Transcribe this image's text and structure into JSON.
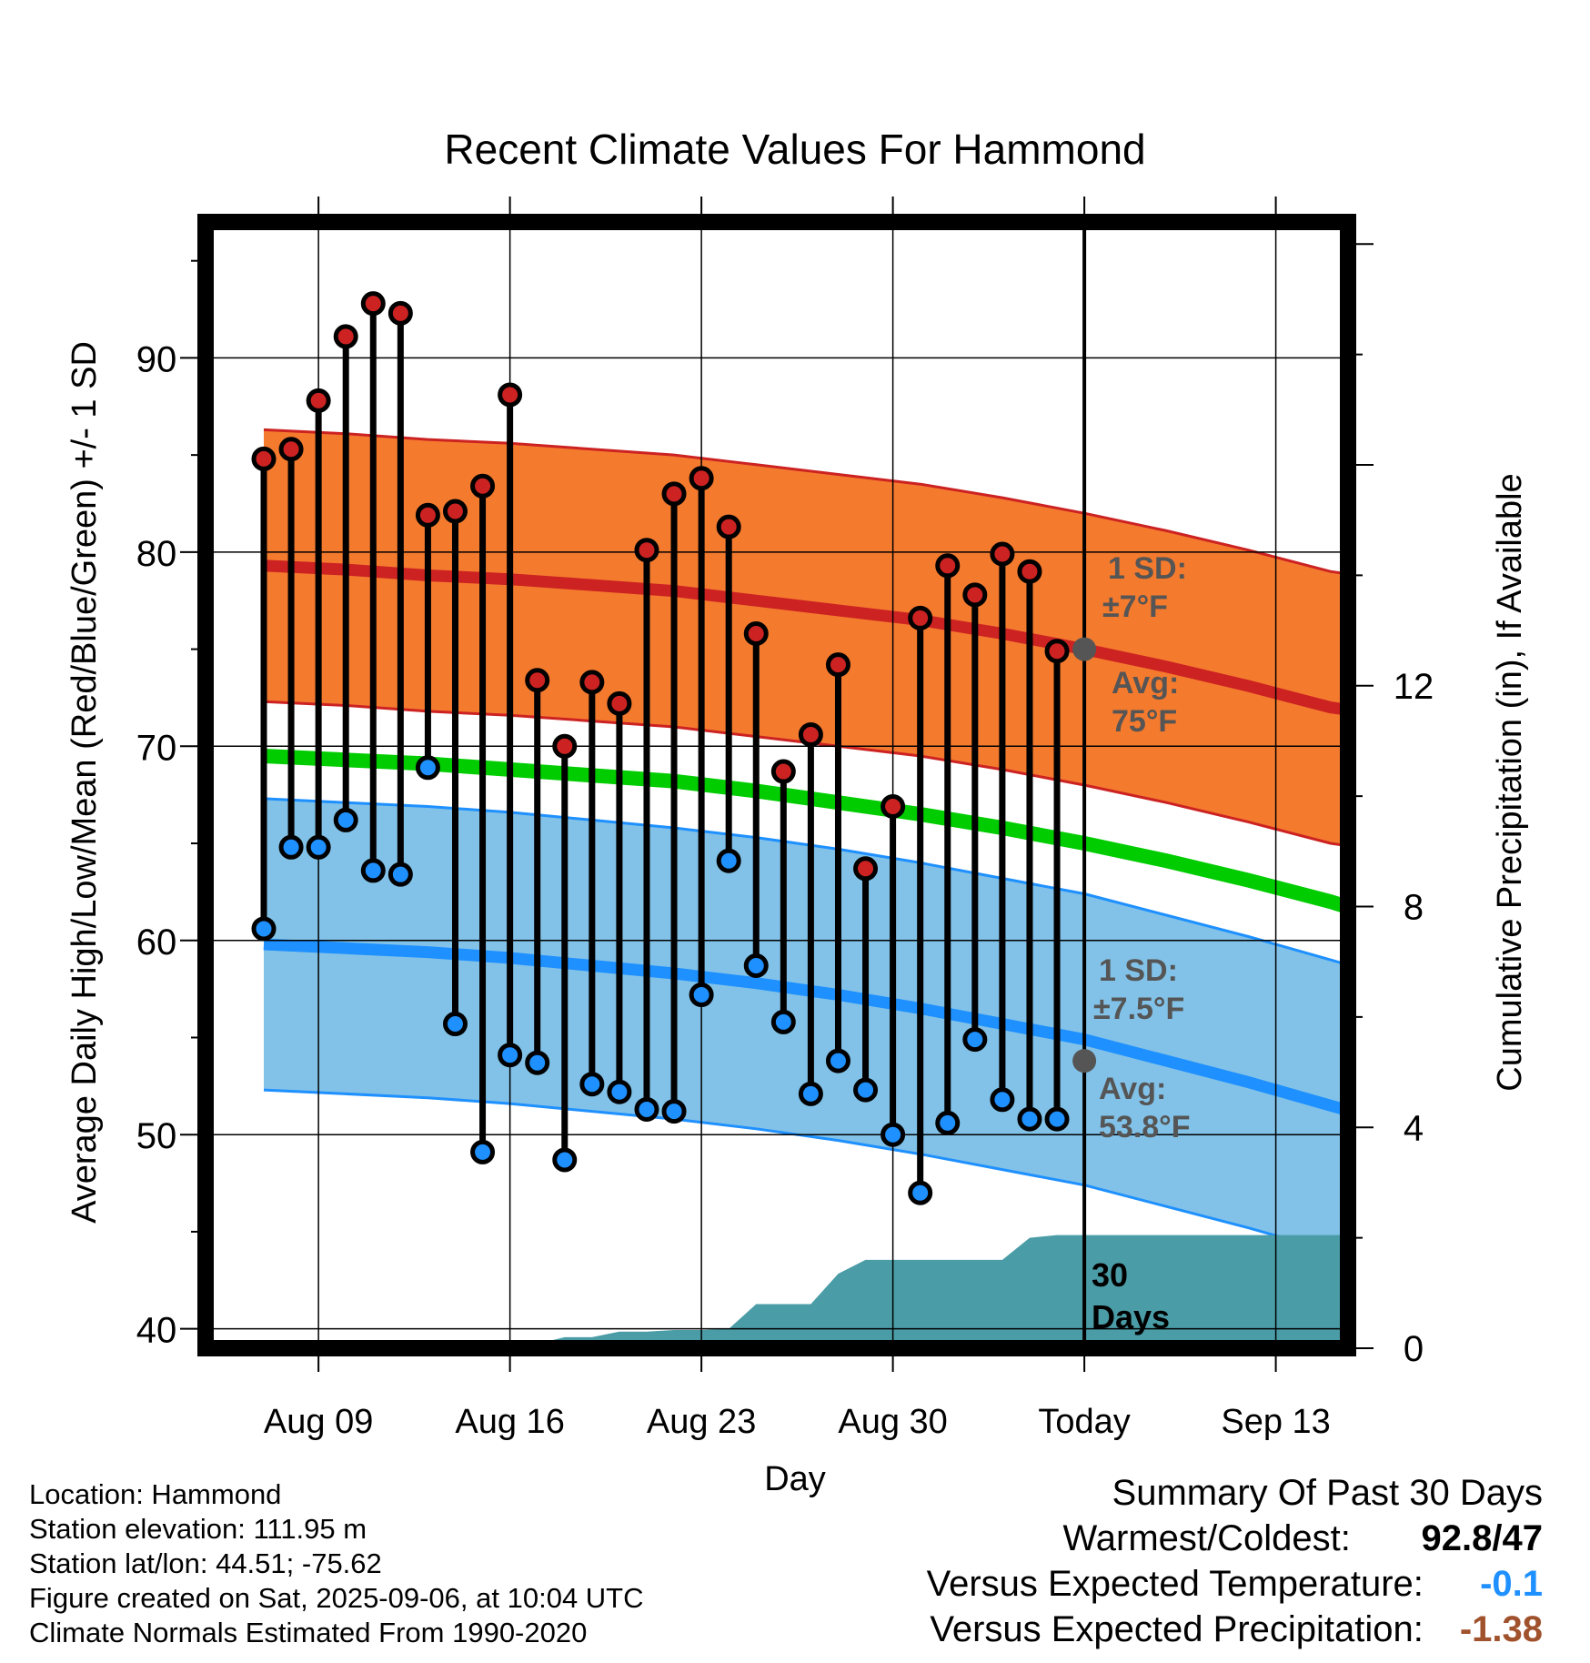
{
  "chart_data": {
    "type": "line",
    "title": "Recent Climate Values For Hammond",
    "xlabel": "Day",
    "ylabel": "Average Daily High/Low/Mean (Red/Blue/Green) +/- 1 SD",
    "y2label": "Cumulative Precipitation (in), If Available",
    "x_dates": [
      "Aug 07",
      "Aug 08",
      "Aug 09",
      "Aug 10",
      "Aug 11",
      "Aug 12",
      "Aug 13",
      "Aug 14",
      "Aug 15",
      "Aug 16",
      "Aug 17",
      "Aug 18",
      "Aug 19",
      "Aug 20",
      "Aug 21",
      "Aug 22",
      "Aug 23",
      "Aug 24",
      "Aug 25",
      "Aug 26",
      "Aug 27",
      "Aug 28",
      "Aug 29",
      "Aug 30",
      "Aug 31",
      "Sep 01",
      "Sep 02",
      "Sep 03",
      "Sep 04",
      "Sep 05"
    ],
    "x_tick_labels": [
      "Aug 09",
      "Aug 16",
      "Aug 23",
      "Aug 30",
      "Today",
      "Sep 13"
    ],
    "ylim": [
      39,
      97
    ],
    "yticks": [
      40,
      50,
      60,
      70,
      80,
      90
    ],
    "y2lim": [
      0,
      20.4
    ],
    "y2ticks": [
      0,
      4,
      8,
      12
    ],
    "grid": true,
    "series": [
      {
        "name": "High",
        "color": "#cc2222",
        "values": [
          84.8,
          85.3,
          87.8,
          91.1,
          92.8,
          92.3,
          81.9,
          82.1,
          83.4,
          88.1,
          73.4,
          70.0,
          73.3,
          72.2,
          80.1,
          83.0,
          83.8,
          81.3,
          75.8,
          68.7,
          70.6,
          74.2,
          63.7,
          66.9,
          76.6,
          79.3,
          77.8,
          79.9,
          79.0,
          74.9
        ]
      },
      {
        "name": "Low",
        "color": "#1e90ff",
        "values": [
          60.6,
          64.8,
          64.8,
          66.2,
          63.6,
          63.4,
          68.9,
          55.7,
          49.1,
          54.1,
          53.7,
          48.7,
          52.6,
          52.2,
          51.3,
          51.2,
          57.2,
          64.1,
          58.7,
          55.8,
          52.1,
          53.8,
          52.3,
          50.0,
          47.0,
          50.6,
          54.9,
          51.8,
          50.8,
          50.8
        ]
      },
      {
        "name": "Normal High",
        "values": [
          79.3,
          79.1,
          78.8,
          78.6,
          78.3,
          78.0,
          77.5,
          77.0,
          76.5,
          75.8,
          75.0,
          74.1,
          73.1,
          72.0,
          71.5
        ]
      },
      {
        "name": "Normal Low",
        "values": [
          59.8,
          59.6,
          59.4,
          59.1,
          58.7,
          58.3,
          57.8,
          57.2,
          56.5,
          55.7,
          54.9,
          53.8,
          52.7,
          51.5,
          50.5
        ]
      },
      {
        "name": "Normal Mean",
        "values": [
          69.5,
          69.3,
          69.1,
          68.8,
          68.5,
          68.2,
          67.7,
          67.1,
          66.5,
          65.8,
          65.0,
          64.1,
          63.1,
          62.0,
          60.9
        ]
      },
      {
        "name": "Cumulative Precipitation",
        "values": [
          0,
          0,
          0,
          0,
          0,
          0,
          0,
          0.08,
          0.08,
          0.08,
          0.08,
          0.2,
          0.2,
          0.3,
          0.3,
          0.33,
          0.33,
          0.35,
          0.8,
          0.8,
          0.8,
          1.35,
          1.6,
          1.6,
          1.6,
          1.6,
          1.6,
          1.6,
          2.0,
          2.05
        ]
      }
    ],
    "normal_x_days": [
      0,
      3,
      6,
      9,
      12,
      15,
      18,
      21,
      24,
      27,
      30,
      33,
      36,
      39,
      41.5
    ],
    "sd_high": 7,
    "sd_low": 7.5,
    "annotations": {
      "high_sd_label": "1 SD:",
      "high_sd_value": "±7°F",
      "high_avg_label": "Avg:",
      "high_avg_value": "75°F",
      "low_sd_label": "1 SD:",
      "low_sd_value": "±7.5°F",
      "low_avg_label": "Avg:",
      "low_avg_value": "53.8°F",
      "window_line1": "30",
      "window_line2": "Days"
    },
    "colors": {
      "high_band": "#f47a2e",
      "high_line": "#cc2222",
      "low_band": "#82c2e8",
      "low_line": "#1e90ff",
      "mean_line": "#00cc00",
      "precip": "#4a9ca6",
      "annotation": "#555555"
    }
  },
  "info": {
    "location": "Location: Hammond",
    "elevation": "Station elevation: 111.95 m",
    "latlon": "Station lat/lon: 44.51; -75.62",
    "created": "Figure created on Sat, 2025-09-06, at 10:04 UTC",
    "normals": "Climate Normals Estimated From 1990-2020"
  },
  "summary": {
    "title": "Summary Of Past 30 Days",
    "warmest_label": "Warmest/Coldest:",
    "warmest_value": "92.8/47",
    "temp_label": "Versus Expected Temperature:",
    "temp_value": "-0.1",
    "temp_color": "#1e90ff",
    "precip_label": "Versus Expected Precipitation:",
    "precip_value": "-1.38",
    "precip_color": "#a0522d"
  }
}
